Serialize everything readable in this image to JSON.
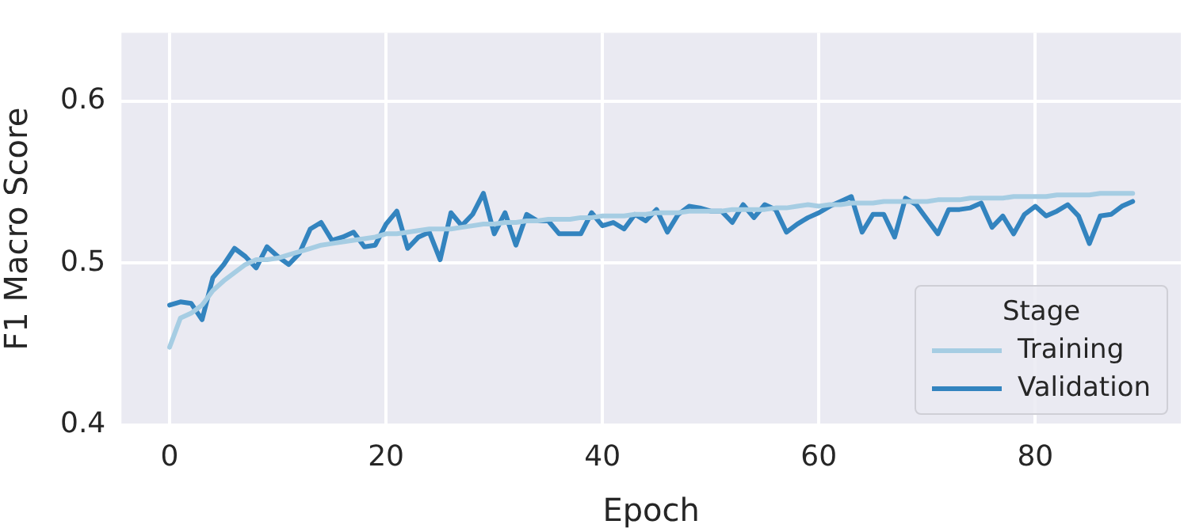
{
  "chart_data": {
    "type": "line",
    "xlabel": "Epoch",
    "ylabel": "F1 Macro Score",
    "legend_title": "Stage",
    "legend": "bottom right",
    "grid": true,
    "line_style": "solid",
    "marker": "none",
    "x": [
      0,
      1,
      2,
      3,
      4,
      5,
      6,
      7,
      8,
      9,
      10,
      11,
      12,
      13,
      14,
      15,
      16,
      17,
      18,
      19,
      20,
      21,
      22,
      23,
      24,
      25,
      26,
      27,
      28,
      29,
      30,
      31,
      32,
      33,
      34,
      35,
      36,
      37,
      38,
      39,
      40,
      41,
      42,
      43,
      44,
      45,
      46,
      47,
      48,
      49,
      50,
      51,
      52,
      53,
      54,
      55,
      56,
      57,
      58,
      59,
      60,
      61,
      62,
      63,
      64,
      65,
      66,
      67,
      68,
      69,
      70,
      71,
      72,
      73,
      74,
      75,
      76,
      77,
      78,
      79,
      80,
      81,
      82,
      83,
      84,
      85,
      86,
      87,
      88,
      89
    ],
    "xlim": [
      -4.45,
      93.45
    ],
    "xticks": [
      0,
      20,
      40,
      60,
      80
    ],
    "ylim": [
      0.4,
      0.642
    ],
    "yticks": [
      0.4,
      0.5,
      0.6
    ],
    "series": [
      {
        "name": "Training",
        "color": "#a6cde3",
        "values": [
          0.448,
          0.466,
          0.469,
          0.474,
          0.483,
          0.489,
          0.494,
          0.499,
          0.502,
          0.502,
          0.503,
          0.505,
          0.507,
          0.509,
          0.511,
          0.512,
          0.513,
          0.514,
          0.515,
          0.516,
          0.518,
          0.518,
          0.519,
          0.52,
          0.521,
          0.521,
          0.521,
          0.522,
          0.523,
          0.524,
          0.524,
          0.525,
          0.525,
          0.526,
          0.526,
          0.527,
          0.527,
          0.527,
          0.528,
          0.528,
          0.529,
          0.529,
          0.529,
          0.53,
          0.53,
          0.531,
          0.531,
          0.531,
          0.532,
          0.532,
          0.532,
          0.532,
          0.533,
          0.533,
          0.533,
          0.533,
          0.534,
          0.534,
          0.535,
          0.536,
          0.535,
          0.536,
          0.536,
          0.537,
          0.537,
          0.537,
          0.538,
          0.538,
          0.538,
          0.538,
          0.538,
          0.539,
          0.539,
          0.539,
          0.54,
          0.54,
          0.54,
          0.54,
          0.541,
          0.541,
          0.541,
          0.541,
          0.542,
          0.542,
          0.542,
          0.542,
          0.543,
          0.543,
          0.543,
          0.543
        ]
      },
      {
        "name": "Validation",
        "color": "#3384bf",
        "values": [
          0.474,
          0.476,
          0.475,
          0.465,
          0.491,
          0.499,
          0.509,
          0.504,
          0.497,
          0.51,
          0.504,
          0.499,
          0.506,
          0.521,
          0.525,
          0.514,
          0.516,
          0.519,
          0.51,
          0.511,
          0.524,
          0.532,
          0.509,
          0.516,
          0.519,
          0.502,
          0.531,
          0.523,
          0.53,
          0.543,
          0.518,
          0.531,
          0.511,
          0.53,
          0.526,
          0.526,
          0.518,
          0.518,
          0.518,
          0.531,
          0.523,
          0.525,
          0.521,
          0.53,
          0.526,
          0.533,
          0.519,
          0.53,
          0.535,
          0.534,
          0.532,
          0.532,
          0.525,
          0.536,
          0.528,
          0.536,
          0.533,
          0.519,
          0.524,
          0.528,
          0.531,
          0.535,
          0.538,
          0.541,
          0.519,
          0.53,
          0.53,
          0.516,
          0.54,
          0.536,
          0.527,
          0.518,
          0.533,
          0.533,
          0.534,
          0.537,
          0.522,
          0.529,
          0.518,
          0.53,
          0.535,
          0.529,
          0.532,
          0.536,
          0.529,
          0.512,
          0.529,
          0.53,
          0.535,
          0.538
        ]
      }
    ]
  }
}
